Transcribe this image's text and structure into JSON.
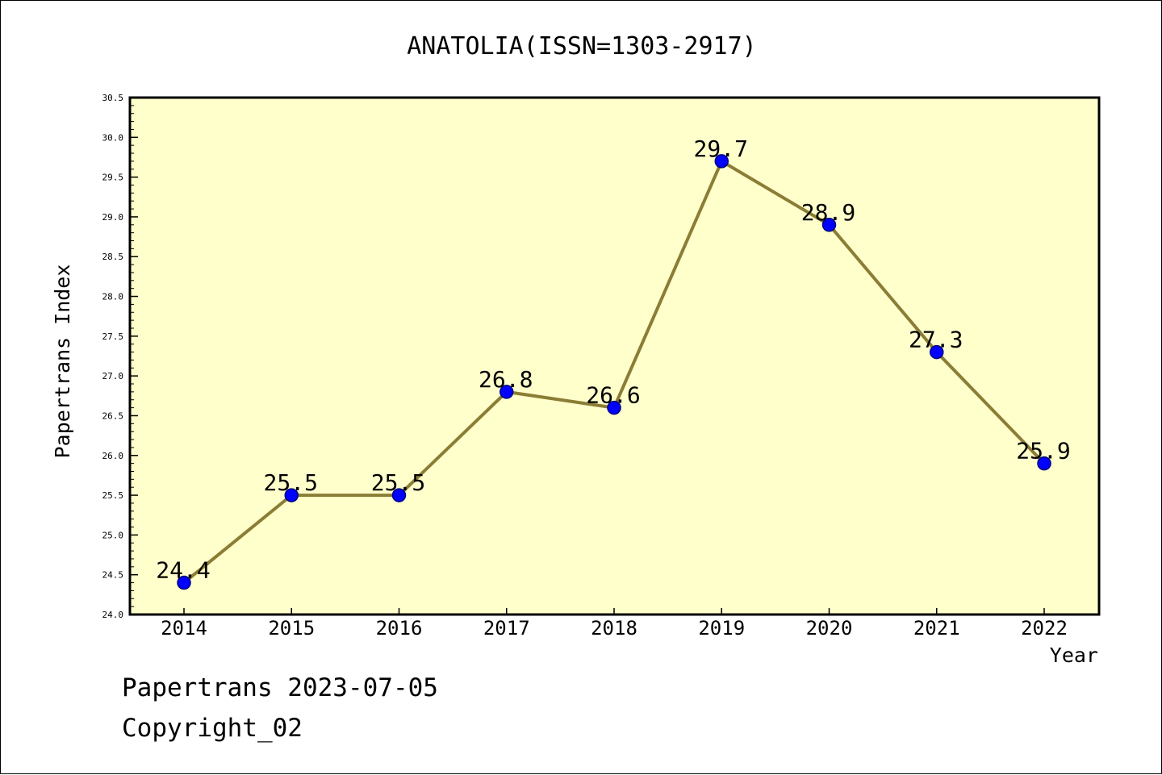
{
  "chart_data": {
    "type": "line",
    "title": "ANATOLIA(ISSN=1303-2917)",
    "xlabel": "Year",
    "ylabel": "Papertrans Index",
    "categories": [
      "2014",
      "2015",
      "2016",
      "2017",
      "2018",
      "2019",
      "2020",
      "2021",
      "2022"
    ],
    "values": [
      24.4,
      25.5,
      25.5,
      26.8,
      26.6,
      29.7,
      28.9,
      27.3,
      25.9
    ],
    "data_labels": [
      "24.4",
      "25.5",
      "25.5",
      "26.8",
      "26.6",
      "29.7",
      "28.9",
      "27.3",
      "25.9"
    ],
    "ylim": [
      24.0,
      30.5
    ],
    "yticks": [
      "24.0",
      "24.5",
      "25.0",
      "25.5",
      "26.0",
      "26.5",
      "27.0",
      "27.5",
      "28.0",
      "28.5",
      "29.0",
      "29.5",
      "30.0",
      "30.5"
    ],
    "grid": false,
    "colors": {
      "plot_background": "#ffffcc",
      "line": "#8b7d35",
      "marker": "#0000ff",
      "marker_edge": "#000080"
    }
  },
  "footer": {
    "source": "Papertrans 2023-07-05",
    "copyright": "Copyright_02"
  }
}
